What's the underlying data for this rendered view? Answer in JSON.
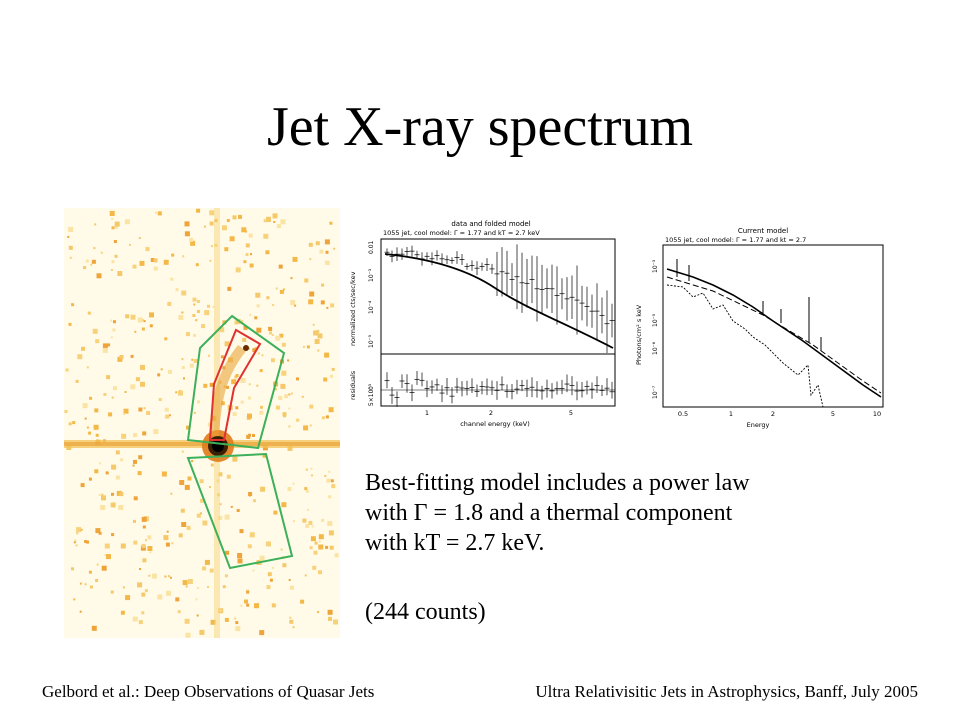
{
  "slide": {
    "title": "Jet X-ray spectrum",
    "body_line1": "Best-fitting model includes a power law",
    "body_line2": "with Γ = 1.8 and a thermal component",
    "body_line3": "with kT = 2.7 keV.",
    "counts": "(244 counts)",
    "footer_left": "Gelbord et al.: Deep Observations of Quasar Jets",
    "footer_right": "Ultra Relativisitic Jets in Astrophysics, Banff, July 2005"
  },
  "plot_left": {
    "title": "data and folded model",
    "subtitle": "1055 jet, cool model: Γ = 1.77 and kT = 2.7 keV",
    "ylabel_top": "normalized cts/sec/kev",
    "ylabel_bottom": "residuals",
    "xlabel": "channel energy (keV)",
    "yticks_top": [
      "0.01",
      "10⁻³",
      "10⁻⁴",
      "10⁻⁵"
    ],
    "yticks_bottom": [
      "0",
      "5×10⁻³"
    ],
    "xticks": [
      "1",
      "2",
      "5"
    ]
  },
  "plot_right": {
    "title": "Current model",
    "subtitle": "1055 jet, cool model: Γ = 1.77 and kt = 2.7",
    "ylabel": "Photons/cm² s keV",
    "xlabel": "Energy",
    "yticks": [
      "10⁻³",
      "10⁻⁵",
      "10⁻⁶",
      "10⁻⁷"
    ],
    "xticks": [
      "0.5",
      "1",
      "2",
      "5",
      "10"
    ]
  }
}
